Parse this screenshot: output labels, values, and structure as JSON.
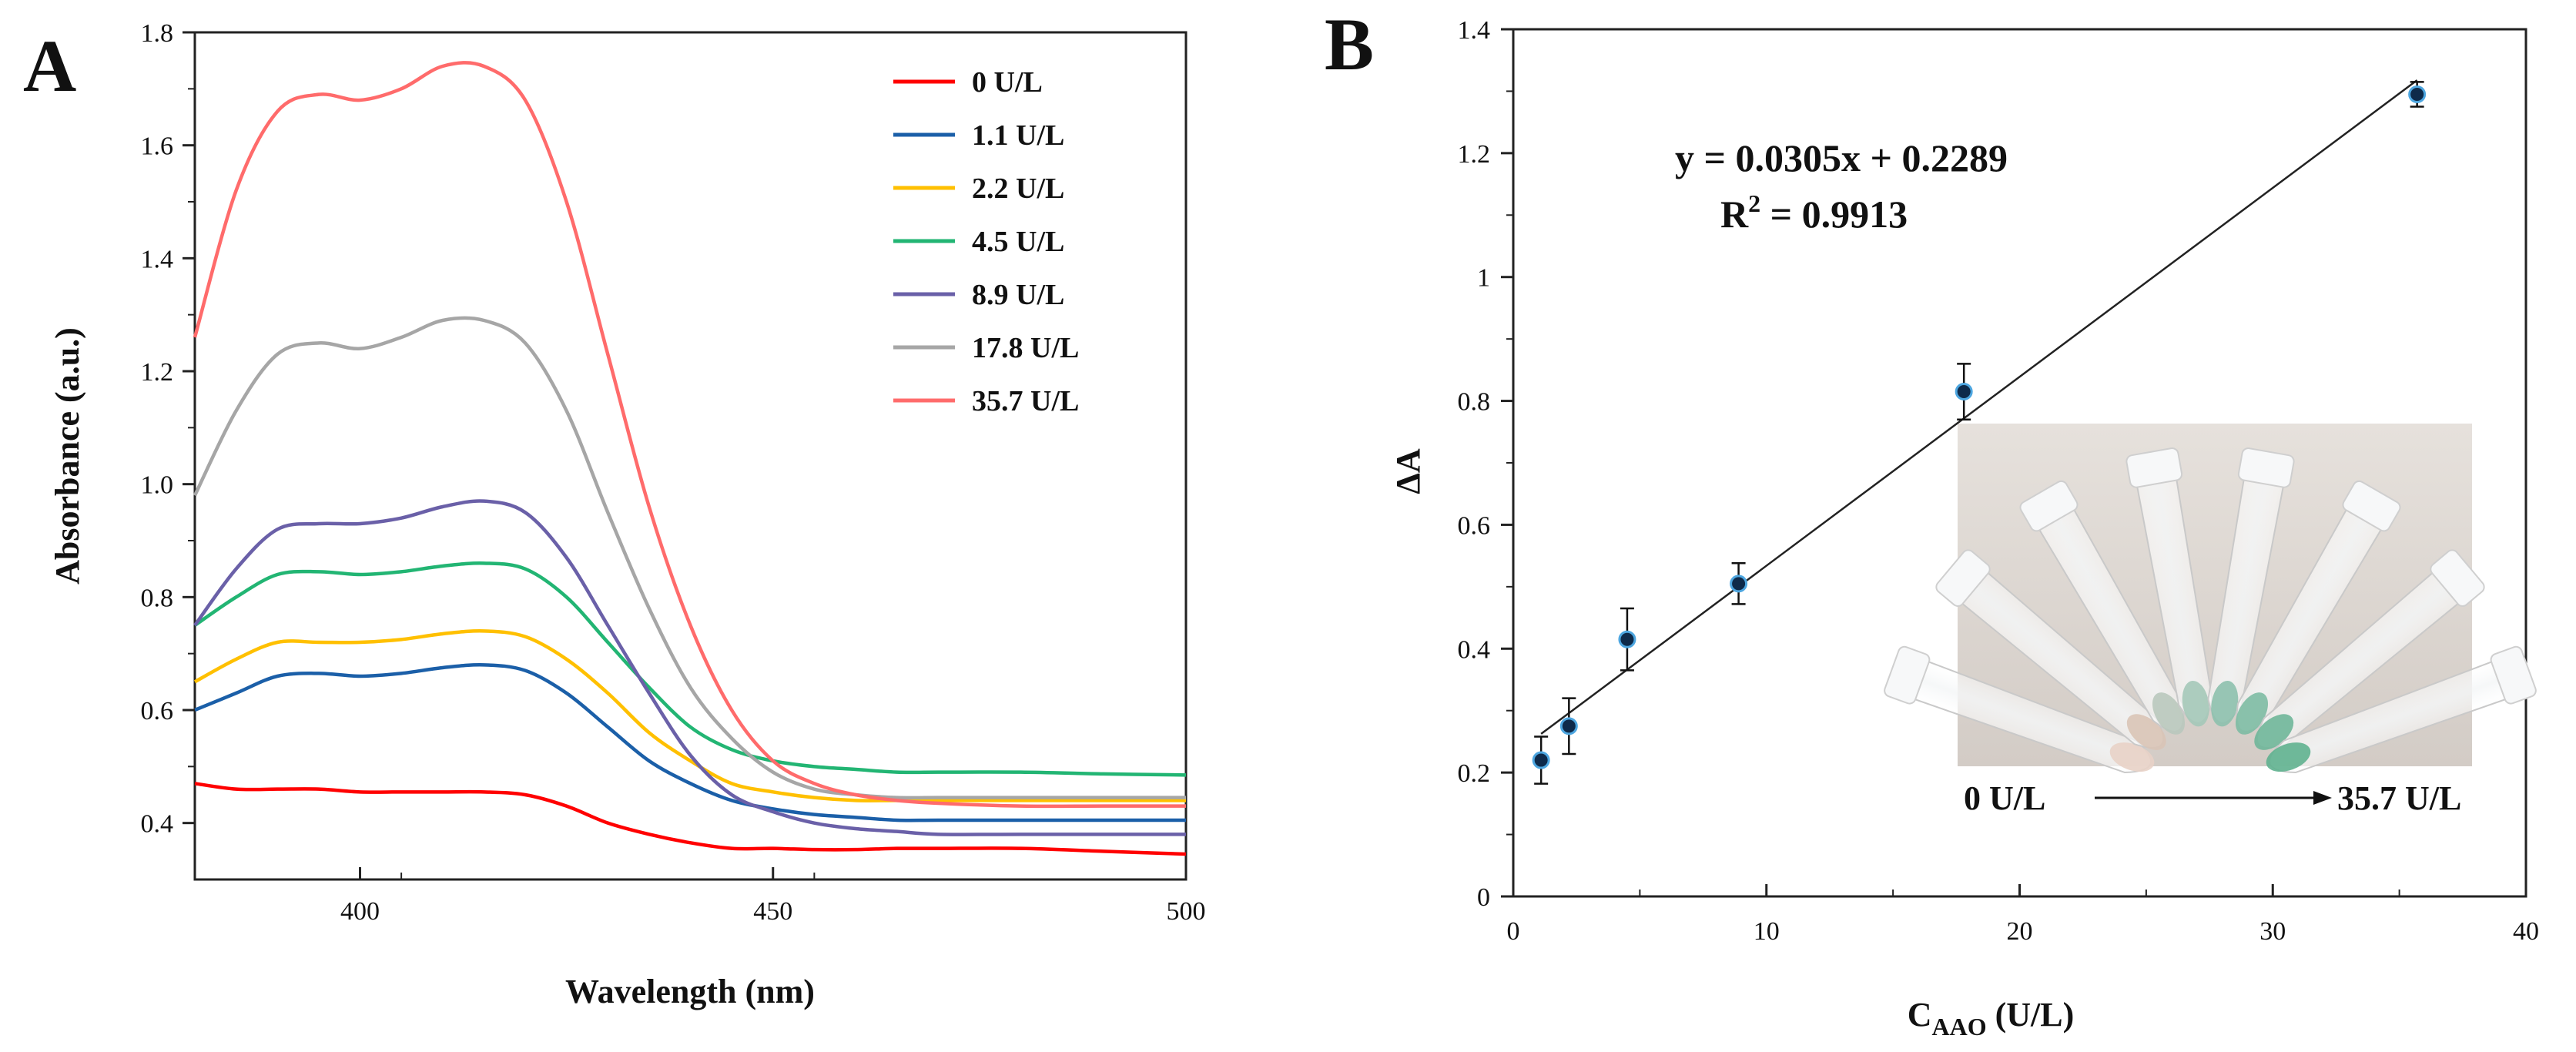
{
  "chart_data": [
    {
      "panel": "A",
      "type": "line",
      "xlabel": "Wavelength (nm)",
      "ylabel": "Absorbance (a.u.)",
      "xlim": [
        380,
        500
      ],
      "ylim": [
        0.3,
        1.8
      ],
      "x_ticks": [
        400,
        450,
        500
      ],
      "x_tick_labels": [
        "400",
        "450",
        "500"
      ],
      "y_ticks": [
        0.4,
        0.6,
        0.8,
        1.0,
        1.2,
        1.4,
        1.6,
        1.8
      ],
      "y_tick_labels": [
        "0.4",
        "0.6",
        "0.8",
        "1.0",
        "1.2",
        "1.4",
        "1.6",
        "1.8"
      ],
      "legend_position": "top-right",
      "x": [
        380,
        385,
        390,
        395,
        400,
        405,
        410,
        415,
        420,
        425,
        430,
        435,
        440,
        445,
        450,
        455,
        460,
        465,
        470,
        480,
        490,
        500
      ],
      "series": [
        {
          "name": "0  U/L",
          "color": "#ff0000",
          "values": [
            0.47,
            0.46,
            0.46,
            0.46,
            0.455,
            0.455,
            0.455,
            0.455,
            0.45,
            0.43,
            0.4,
            0.38,
            0.365,
            0.355,
            0.355,
            0.353,
            0.353,
            0.355,
            0.355,
            0.355,
            0.35,
            0.345
          ]
        },
        {
          "name": "1.1 U/L",
          "color": "#1b5fa8",
          "values": [
            0.6,
            0.63,
            0.66,
            0.665,
            0.66,
            0.665,
            0.675,
            0.68,
            0.67,
            0.63,
            0.57,
            0.51,
            0.47,
            0.44,
            0.425,
            0.415,
            0.41,
            0.405,
            0.405,
            0.405,
            0.405,
            0.405
          ]
        },
        {
          "name": "2.2 U/L",
          "color": "#ffc000",
          "values": [
            0.65,
            0.69,
            0.72,
            0.72,
            0.72,
            0.725,
            0.735,
            0.74,
            0.73,
            0.69,
            0.63,
            0.56,
            0.51,
            0.47,
            0.455,
            0.445,
            0.44,
            0.44,
            0.44,
            0.44,
            0.44,
            0.44
          ]
        },
        {
          "name": "4.5 U/L",
          "color": "#22b573",
          "values": [
            0.75,
            0.8,
            0.84,
            0.845,
            0.84,
            0.845,
            0.855,
            0.86,
            0.85,
            0.8,
            0.72,
            0.64,
            0.57,
            0.53,
            0.51,
            0.5,
            0.495,
            0.49,
            0.49,
            0.49,
            0.487,
            0.485
          ]
        },
        {
          "name": "8.9 U/L",
          "color": "#6a60a8",
          "values": [
            0.75,
            0.85,
            0.92,
            0.93,
            0.93,
            0.94,
            0.96,
            0.97,
            0.95,
            0.87,
            0.75,
            0.63,
            0.52,
            0.45,
            0.42,
            0.4,
            0.39,
            0.385,
            0.38,
            0.38,
            0.38,
            0.38
          ]
        },
        {
          "name": "17.8 U/L",
          "color": "#a6a6a6",
          "values": [
            0.98,
            1.13,
            1.23,
            1.25,
            1.24,
            1.26,
            1.29,
            1.29,
            1.25,
            1.13,
            0.95,
            0.78,
            0.64,
            0.55,
            0.49,
            0.46,
            0.45,
            0.445,
            0.445,
            0.445,
            0.445,
            0.445
          ]
        },
        {
          "name": "35.7 U/L",
          "color": "#ff6b6b",
          "values": [
            1.26,
            1.52,
            1.66,
            1.69,
            1.68,
            1.7,
            1.74,
            1.74,
            1.68,
            1.5,
            1.23,
            0.96,
            0.75,
            0.6,
            0.51,
            0.47,
            0.45,
            0.44,
            0.435,
            0.43,
            0.43,
            0.43
          ]
        }
      ]
    },
    {
      "panel": "B",
      "type": "scatter",
      "xlabel_main": "C",
      "xlabel_sub": "AAO",
      "xlabel_rest": " (U/L)",
      "ylabel": "ΔA",
      "xlim": [
        0,
        40
      ],
      "ylim": [
        0,
        1.4
      ],
      "x_ticks": [
        0,
        10,
        20,
        30,
        40
      ],
      "x_tick_labels": [
        "0",
        "10",
        "20",
        "30",
        "40"
      ],
      "y_ticks": [
        0,
        0.2,
        0.4,
        0.6,
        0.8,
        1.0,
        1.2,
        1.4
      ],
      "y_tick_labels": [
        "0",
        "0.2",
        "0.4",
        "0.6",
        "0.8",
        "1",
        "1.2",
        "1.4"
      ],
      "x": [
        1.1,
        2.2,
        4.5,
        8.9,
        17.8,
        35.7
      ],
      "y": [
        0.22,
        0.275,
        0.415,
        0.505,
        0.815,
        1.295
      ],
      "error": [
        0.038,
        0.045,
        0.05,
        0.033,
        0.045,
        0.02
      ],
      "fit": {
        "slope": 0.0305,
        "intercept": 0.2289,
        "x_range": [
          1.1,
          35.7
        ]
      },
      "equation": "y = 0.0305x + 0.2289",
      "r2_prefix": "R",
      "r2_sup": "2",
      "r2_rest": " = 0.9913",
      "inset": {
        "start_label": "0 U/L",
        "end_label": "35.7 U/L"
      }
    }
  ],
  "panel_labels": {
    "a": "A",
    "b": "B"
  }
}
